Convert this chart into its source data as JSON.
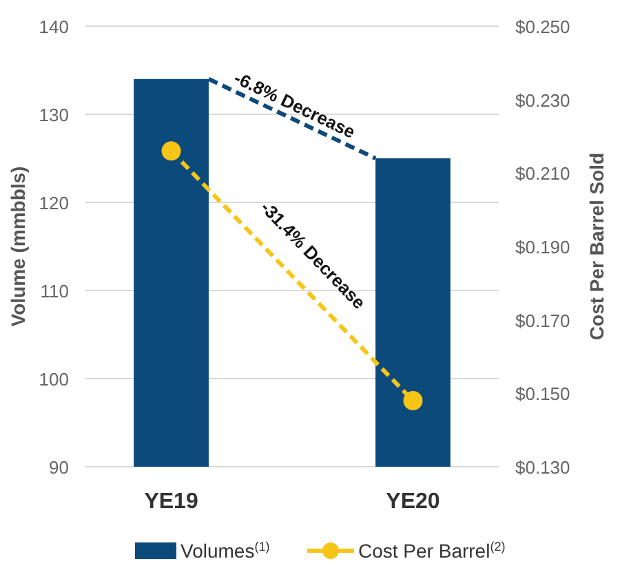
{
  "chart_data": {
    "type": "bar",
    "categories": [
      "YE19",
      "YE20"
    ],
    "ylabel": "Volume (mmbbls)",
    "y2label": "Cost Per Barrel Sold",
    "series": [
      {
        "name": "Volumes$^{(1)}$",
        "color": "#0c4a7c",
        "values": [
          134,
          125
        ]
      },
      {
        "name": "Cost Per Barrel$^{(2)}$",
        "type": "line",
        "axis": "y2",
        "color": "#f6c517",
        "values": [
          0.216,
          0.148
        ],
        "marker": "circle",
        "line_style": "dashed"
      }
    ],
    "ylim": [
      90,
      140
    ],
    "yticks": [
      90,
      100,
      110,
      120,
      130,
      140
    ],
    "y2lim": [
      0.13,
      0.25
    ],
    "y2ticks": [
      {
        "value": 0.13,
        "label": "$0.130"
      },
      {
        "value": 0.15,
        "label": "$0.150"
      },
      {
        "value": 0.17,
        "label": "$0.170"
      },
      {
        "value": 0.19,
        "label": "$0.190"
      },
      {
        "value": 0.21,
        "label": "$0.210"
      },
      {
        "value": 0.23,
        "label": "$0.230"
      },
      {
        "value": 0.25,
        "label": "$0.250"
      }
    ],
    "annotations": [
      "-6.8% Decrease",
      "-31.4% Decrease"
    ],
    "grid": "y",
    "legend": "bottom"
  }
}
